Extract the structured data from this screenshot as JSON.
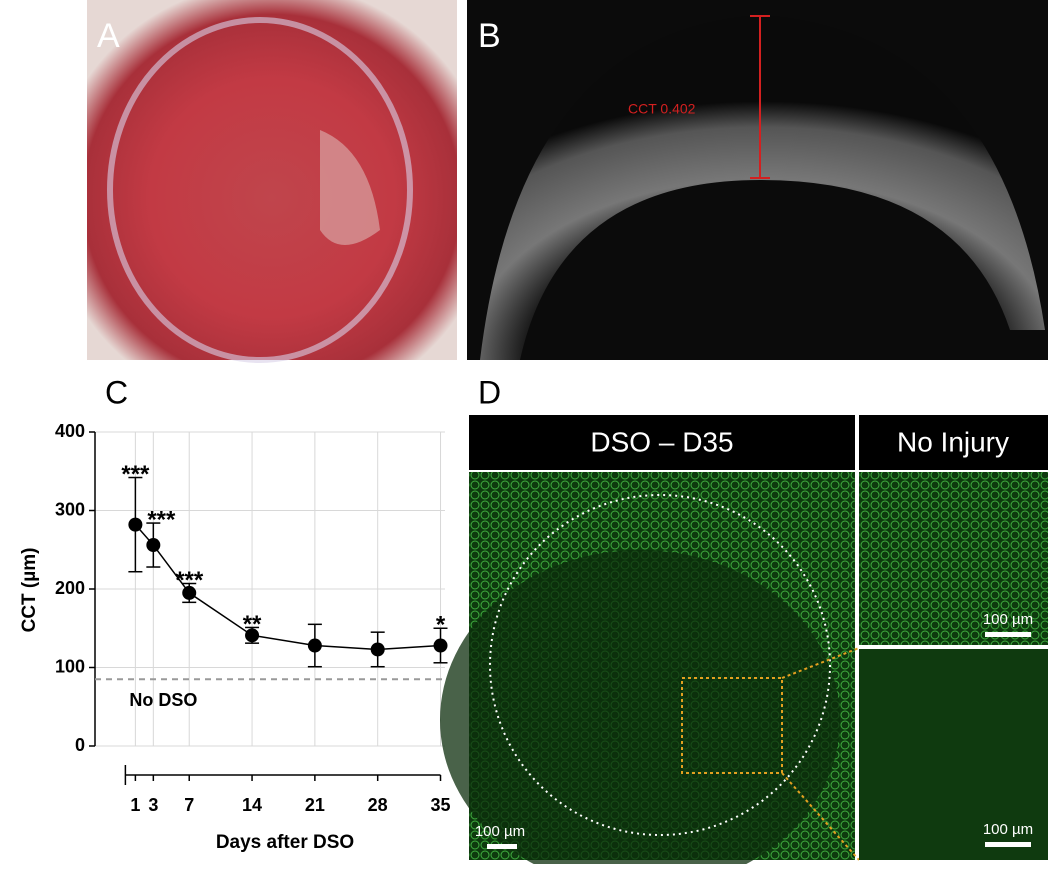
{
  "panels": {
    "A": {
      "label": "A"
    },
    "B": {
      "label": "B",
      "measurement": "CCT 0.402"
    },
    "C": {
      "label": "C"
    },
    "D": {
      "label": "D",
      "left_title": "DSO – D35",
      "right_title": "No Injury",
      "scale_bars": [
        "100 µm",
        "100 µm",
        "100 µm"
      ]
    }
  },
  "chart_data": {
    "type": "line",
    "x_label": "Days after DSO",
    "y_label": "CCT (µm)",
    "x": [
      1,
      3,
      7,
      14,
      21,
      28,
      35
    ],
    "values": [
      282,
      256,
      195,
      141,
      128,
      123,
      128
    ],
    "errors": [
      60,
      28,
      12,
      10,
      27,
      22,
      22
    ],
    "color": "#000000",
    "significance": [
      {
        "x": 1,
        "label": "***"
      },
      {
        "x": 3,
        "label": "***"
      },
      {
        "x": 7,
        "label": "***"
      },
      {
        "x": 14,
        "label": "**"
      },
      {
        "x": 35,
        "label": "*"
      }
    ],
    "reference": {
      "value": 85,
      "label": "No DSO"
    },
    "xlim": [
      -3.5,
      35.5
    ],
    "xticks": [
      1,
      3,
      7,
      14,
      21,
      28,
      35
    ],
    "ylim": [
      0,
      400
    ],
    "yticks": [
      0,
      100,
      200,
      300,
      400
    ],
    "grid": true
  }
}
